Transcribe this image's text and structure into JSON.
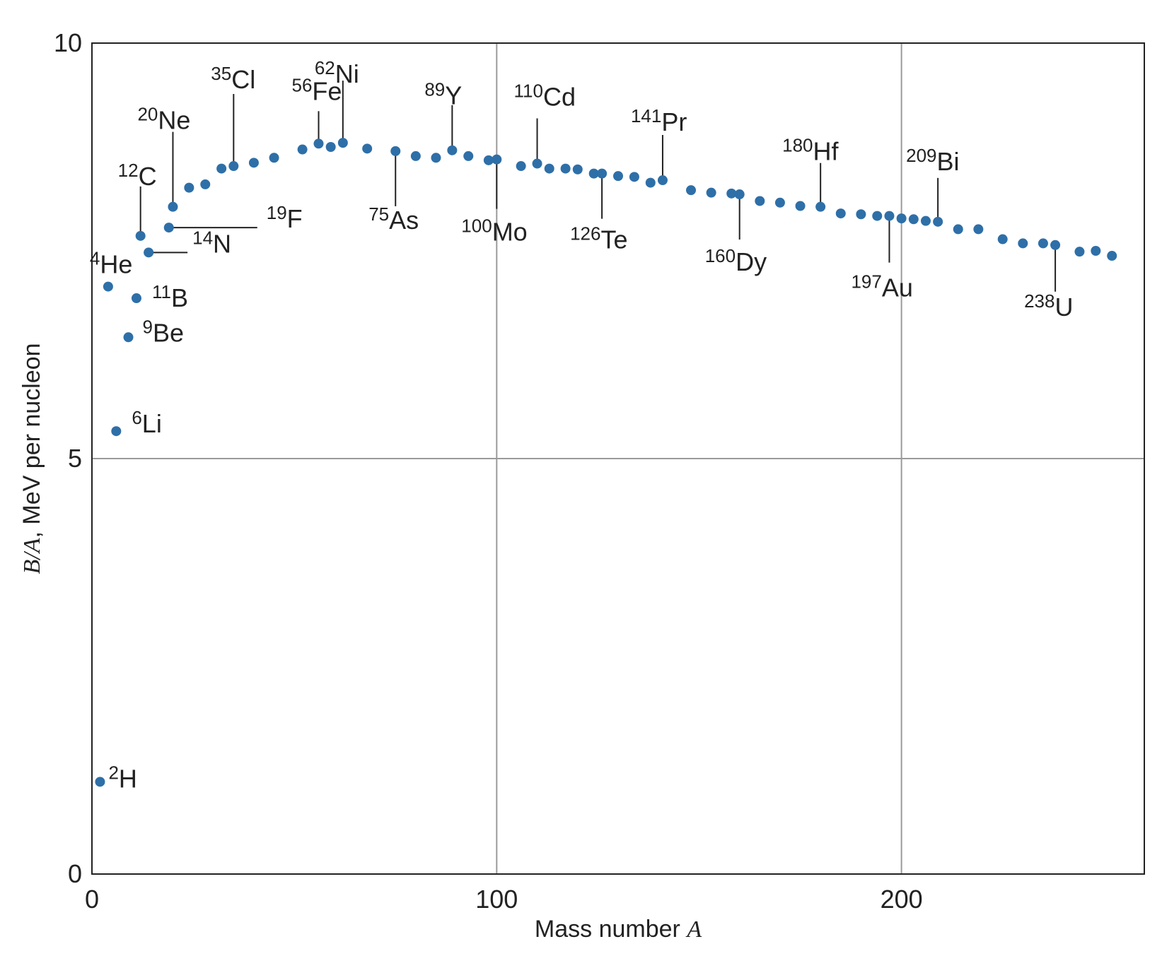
{
  "chart_data": {
    "type": "scatter",
    "title": "",
    "xlabel_text": "Mass number ",
    "xlabel_var": "A",
    "ylabel_var": "B/A",
    "ylabel_text": ", MeV per nucleon",
    "xlim": [
      0,
      260
    ],
    "ylim": [
      0,
      10
    ],
    "xticks": [
      "0",
      "100",
      "200"
    ],
    "yticks": [
      "0",
      "5",
      "10"
    ],
    "grid": true,
    "marker_color": "#2e6fa8",
    "grid_color": "#9a9a9a",
    "labeled_isotopes": [
      {
        "mass": "2",
        "symbol": "H",
        "a": 2,
        "ba": 1.11
      },
      {
        "mass": "4",
        "symbol": "He",
        "a": 4,
        "ba": 7.07
      },
      {
        "mass": "6",
        "symbol": "Li",
        "a": 6,
        "ba": 5.33
      },
      {
        "mass": "9",
        "symbol": "Be",
        "a": 9,
        "ba": 6.46
      },
      {
        "mass": "11",
        "symbol": "B",
        "a": 11,
        "ba": 6.93
      },
      {
        "mass": "12",
        "symbol": "C",
        "a": 12,
        "ba": 7.68
      },
      {
        "mass": "14",
        "symbol": "N",
        "a": 14,
        "ba": 7.48
      },
      {
        "mass": "19",
        "symbol": "F",
        "a": 19,
        "ba": 7.78
      },
      {
        "mass": "20",
        "symbol": "Ne",
        "a": 20,
        "ba": 8.03
      },
      {
        "mass": "35",
        "symbol": "Cl",
        "a": 35,
        "ba": 8.52
      },
      {
        "mass": "56",
        "symbol": "Fe",
        "a": 56,
        "ba": 8.79
      },
      {
        "mass": "62",
        "symbol": "Ni",
        "a": 62,
        "ba": 8.8
      },
      {
        "mass": "75",
        "symbol": "As",
        "a": 75,
        "ba": 8.7
      },
      {
        "mass": "89",
        "symbol": "Y",
        "a": 89,
        "ba": 8.71
      },
      {
        "mass": "100",
        "symbol": "Mo",
        "a": 100,
        "ba": 8.6
      },
      {
        "mass": "110",
        "symbol": "Cd",
        "a": 110,
        "ba": 8.55
      },
      {
        "mass": "126",
        "symbol": "Te",
        "a": 126,
        "ba": 8.43
      },
      {
        "mass": "141",
        "symbol": "Pr",
        "a": 141,
        "ba": 8.35
      },
      {
        "mass": "160",
        "symbol": "Dy",
        "a": 160,
        "ba": 8.18
      },
      {
        "mass": "180",
        "symbol": "Hf",
        "a": 180,
        "ba": 8.03
      },
      {
        "mass": "197",
        "symbol": "Au",
        "a": 197,
        "ba": 7.92
      },
      {
        "mass": "209",
        "symbol": "Bi",
        "a": 209,
        "ba": 7.85
      },
      {
        "mass": "238",
        "symbol": "U",
        "a": 238,
        "ba": 7.57
      }
    ],
    "points": [
      {
        "a": 2,
        "ba": 1.11
      },
      {
        "a": 4,
        "ba": 7.07
      },
      {
        "a": 6,
        "ba": 5.33
      },
      {
        "a": 9,
        "ba": 6.46
      },
      {
        "a": 11,
        "ba": 6.93
      },
      {
        "a": 12,
        "ba": 7.68
      },
      {
        "a": 14,
        "ba": 7.48
      },
      {
        "a": 19,
        "ba": 7.78
      },
      {
        "a": 20,
        "ba": 8.03
      },
      {
        "a": 24,
        "ba": 8.26
      },
      {
        "a": 28,
        "ba": 8.3
      },
      {
        "a": 32,
        "ba": 8.49
      },
      {
        "a": 35,
        "ba": 8.52
      },
      {
        "a": 40,
        "ba": 8.56
      },
      {
        "a": 45,
        "ba": 8.62
      },
      {
        "a": 52,
        "ba": 8.72
      },
      {
        "a": 56,
        "ba": 8.79
      },
      {
        "a": 59,
        "ba": 8.75
      },
      {
        "a": 62,
        "ba": 8.8
      },
      {
        "a": 68,
        "ba": 8.73
      },
      {
        "a": 75,
        "ba": 8.7
      },
      {
        "a": 80,
        "ba": 8.64
      },
      {
        "a": 85,
        "ba": 8.62
      },
      {
        "a": 89,
        "ba": 8.71
      },
      {
        "a": 93,
        "ba": 8.64
      },
      {
        "a": 98,
        "ba": 8.59
      },
      {
        "a": 100,
        "ba": 8.6
      },
      {
        "a": 106,
        "ba": 8.52
      },
      {
        "a": 110,
        "ba": 8.55
      },
      {
        "a": 113,
        "ba": 8.49
      },
      {
        "a": 117,
        "ba": 8.49
      },
      {
        "a": 120,
        "ba": 8.48
      },
      {
        "a": 124,
        "ba": 8.43
      },
      {
        "a": 126,
        "ba": 8.43
      },
      {
        "a": 130,
        "ba": 8.4
      },
      {
        "a": 134,
        "ba": 8.39
      },
      {
        "a": 138,
        "ba": 8.32
      },
      {
        "a": 141,
        "ba": 8.35
      },
      {
        "a": 148,
        "ba": 8.23
      },
      {
        "a": 153,
        "ba": 8.2
      },
      {
        "a": 158,
        "ba": 8.19
      },
      {
        "a": 160,
        "ba": 8.18
      },
      {
        "a": 165,
        "ba": 8.1
      },
      {
        "a": 170,
        "ba": 8.08
      },
      {
        "a": 175,
        "ba": 8.04
      },
      {
        "a": 180,
        "ba": 8.03
      },
      {
        "a": 185,
        "ba": 7.95
      },
      {
        "a": 190,
        "ba": 7.94
      },
      {
        "a": 194,
        "ba": 7.92
      },
      {
        "a": 197,
        "ba": 7.92
      },
      {
        "a": 200,
        "ba": 7.89
      },
      {
        "a": 203,
        "ba": 7.88
      },
      {
        "a": 206,
        "ba": 7.86
      },
      {
        "a": 209,
        "ba": 7.85
      },
      {
        "a": 214,
        "ba": 7.76
      },
      {
        "a": 219,
        "ba": 7.76
      },
      {
        "a": 225,
        "ba": 7.64
      },
      {
        "a": 230,
        "ba": 7.59
      },
      {
        "a": 235,
        "ba": 7.59
      },
      {
        "a": 238,
        "ba": 7.57
      },
      {
        "a": 244,
        "ba": 7.49
      },
      {
        "a": 248,
        "ba": 7.5
      },
      {
        "a": 252,
        "ba": 7.44
      }
    ]
  }
}
